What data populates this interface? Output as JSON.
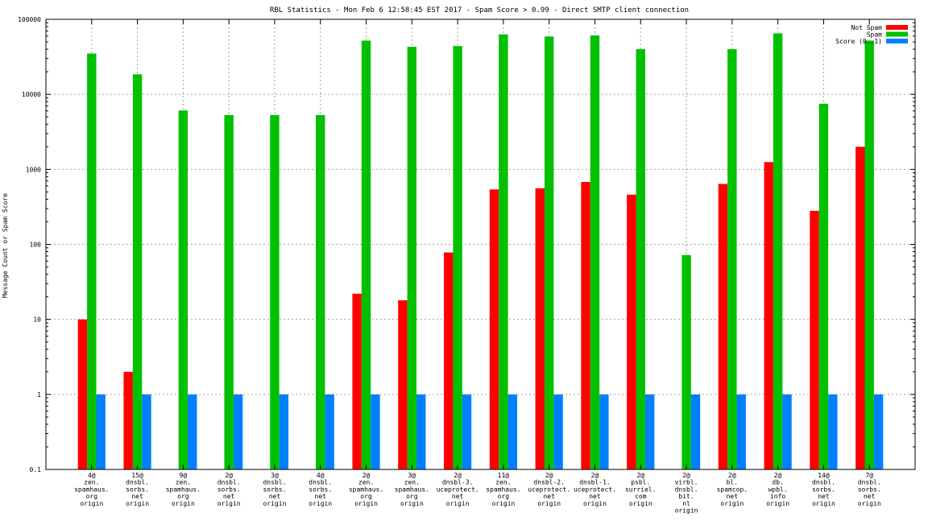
{
  "chart_data": {
    "type": "bar",
    "title": "RBL Statistics - Mon Feb  6 12:58:45 EST 2017 - Spam Score > 0.99 - Direct SMTP client connection",
    "xlabel": "",
    "ylabel": "Message Count or Spam Score",
    "y_scale": "log",
    "ylim": [
      0.1,
      100000
    ],
    "y_ticks": [
      0.1,
      1,
      10,
      100,
      1000,
      10000,
      100000
    ],
    "y_tick_labels": [
      "0.1",
      "1",
      "10",
      "100",
      "1000",
      "10000",
      "100000"
    ],
    "grid": true,
    "legend_position": "top-right",
    "categories": [
      [
        "4@",
        "zen.",
        "spamhaus.",
        "org",
        "origin"
      ],
      [
        "15@",
        "dnsbl.",
        "sorbs.",
        "net",
        "origin"
      ],
      [
        "9@",
        "zen.",
        "spamhaus.",
        "org",
        "origin"
      ],
      [
        "2@",
        "dnsbl.",
        "sorbs.",
        "net",
        "origin"
      ],
      [
        "3@",
        "dnsbl.",
        "sorbs.",
        "net",
        "origin"
      ],
      [
        "4@",
        "dnsbl.",
        "sorbs.",
        "net",
        "origin"
      ],
      [
        "2@",
        "zen.",
        "spamhaus.",
        "org",
        "origin"
      ],
      [
        "3@",
        "zen.",
        "spamhaus.",
        "org",
        "origin"
      ],
      [
        "2@",
        "dnsbl-3.",
        "uceprotect.",
        "net",
        "origin"
      ],
      [
        "11@",
        "zen.",
        "spamhaus.",
        "org",
        "origin"
      ],
      [
        "2@",
        "dnsbl-2.",
        "uceprotect.",
        "net",
        "origin"
      ],
      [
        "2@",
        "dnsbl-1.",
        "uceprotect.",
        "net",
        "origin"
      ],
      [
        "2@",
        "psbl.",
        "surriel.",
        "com",
        "origin"
      ],
      [
        "2@",
        "virbl.",
        "dnsbl.",
        "bit.",
        "nl",
        "origin"
      ],
      [
        "2@",
        "bl.",
        "spamcop.",
        "net",
        "origin"
      ],
      [
        "2@",
        "db.",
        "wpbl.",
        "info",
        "origin"
      ],
      [
        "14@",
        "dnsbl.",
        "sorbs.",
        "net",
        "origin"
      ],
      [
        "7@",
        "dnsbl.",
        "sorbs.",
        "net",
        "origin"
      ]
    ],
    "series": [
      {
        "name": "Not Spam",
        "color": "#ff0000",
        "values": [
          10,
          2,
          null,
          null,
          null,
          null,
          22,
          18,
          78,
          540,
          560,
          680,
          460,
          null,
          640,
          1250,
          280,
          2000
        ]
      },
      {
        "name": "Spam",
        "color": "#00c000",
        "values": [
          35000,
          18500,
          6100,
          5300,
          5300,
          5300,
          52000,
          43000,
          44000,
          63000,
          59000,
          61000,
          40000,
          72,
          40000,
          65000,
          7500,
          52000
        ]
      },
      {
        "name": "Score (0..1)",
        "color": "#0080ff",
        "values": [
          1,
          1,
          1,
          1,
          1,
          1,
          1,
          1,
          1,
          1,
          1,
          1,
          1,
          1,
          1,
          1,
          1,
          1
        ]
      }
    ]
  }
}
